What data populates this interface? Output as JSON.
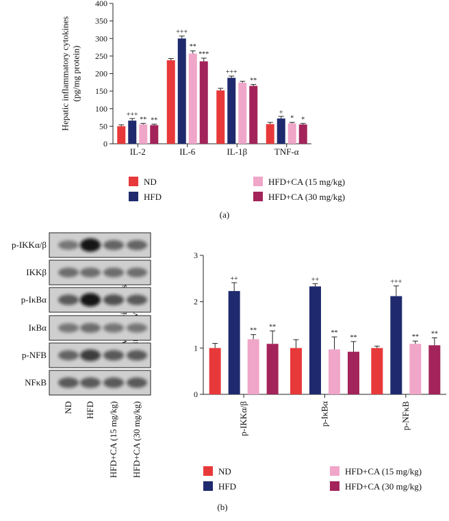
{
  "chart_data": [
    {
      "type": "bar",
      "ylabel": [
        "Hepatic inflammatory cytokines",
        "(pg/mg protein)"
      ],
      "categories": [
        "IL-2",
        "IL-6",
        "IL-1β",
        "TNF-α"
      ],
      "ylim": [
        0,
        400
      ],
      "yticks": [
        0,
        50,
        100,
        150,
        200,
        250,
        300,
        350,
        400
      ],
      "series": [
        {
          "name": "ND",
          "color": "#e8393a",
          "values": [
            50,
            238,
            152,
            56
          ],
          "errors": [
            4,
            5,
            6,
            5
          ],
          "significance": [
            null,
            null,
            null,
            null
          ]
        },
        {
          "name": "HFD",
          "color": "#1f2a6e",
          "values": [
            66,
            300,
            188,
            72
          ],
          "errors": [
            6,
            7,
            5,
            6
          ],
          "significance": [
            "+++",
            "+++",
            "+++",
            "+"
          ]
        },
        {
          "name": "HFD+CA (15 mg/kg)",
          "color": "#f0a6c8",
          "values": [
            55,
            257,
            174,
            58
          ],
          "errors": [
            3,
            8,
            4,
            3
          ],
          "significance": [
            "**",
            "**",
            null,
            "*"
          ]
        },
        {
          "name": "HFD+CA (30 mg/kg)",
          "color": "#a3245a",
          "values": [
            53,
            235,
            165,
            55
          ],
          "errors": [
            3,
            9,
            4,
            3
          ],
          "significance": [
            "**",
            "***",
            "**",
            "*"
          ]
        }
      ],
      "panel_label": "(a)"
    },
    {
      "type": "bar",
      "ylabel": [
        "Relative protein levels",
        "in the liver"
      ],
      "categories": [
        "p-IKKα/β",
        "p-IκBα",
        "p-NFκB"
      ],
      "ylim": [
        0,
        3
      ],
      "yticks": [
        0,
        1,
        2,
        3
      ],
      "series": [
        {
          "name": "ND",
          "color": "#e8393a",
          "values": [
            1.0,
            1.0,
            1.0
          ],
          "errors": [
            0.1,
            0.18,
            0.04
          ],
          "significance": [
            null,
            null,
            null
          ]
        },
        {
          "name": "HFD",
          "color": "#1f2a6e",
          "values": [
            2.23,
            2.33,
            2.12
          ],
          "errors": [
            0.18,
            0.06,
            0.22
          ],
          "significance": [
            "++",
            "++",
            "+++"
          ]
        },
        {
          "name": "HFD+CA (15 mg/kg)",
          "color": "#f0a6c8",
          "values": [
            1.19,
            0.97,
            1.09
          ],
          "errors": [
            0.1,
            0.27,
            0.06
          ],
          "significance": [
            "**",
            "**",
            "**"
          ]
        },
        {
          "name": "HFD+CA (30 mg/kg)",
          "color": "#a3245a",
          "values": [
            1.09,
            0.92,
            1.06
          ],
          "errors": [
            0.28,
            0.22,
            0.16
          ],
          "significance": [
            "**",
            "**",
            "**"
          ]
        }
      ],
      "panel_label": "(b)"
    }
  ],
  "blot": {
    "rows": [
      "p-IKKα/β",
      "IKKβ",
      "p-IκBα",
      "IκBα",
      "p-NFB",
      "NFκB"
    ],
    "lanes": [
      "ND",
      "HFD",
      "HFD+CA (15 mg/kg)",
      "HFD+CA (30 mg/kg)"
    ]
  }
}
